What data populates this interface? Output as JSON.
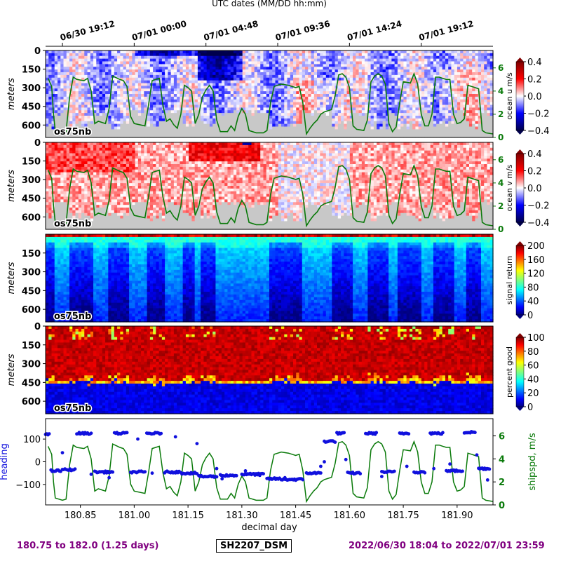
{
  "chart_data": [
    {
      "type": "heatmap",
      "top_axis_label": "UTC dates (MM/DD hh:mm)",
      "top_ticks": [
        {
          "x": 180.8,
          "label": "06/30 19:12"
        },
        {
          "x": 181.0,
          "label": "07/01 00:00"
        },
        {
          "x": 181.2,
          "label": "07/01 04:48"
        },
        {
          "x": 181.4,
          "label": "07/01 09:36"
        },
        {
          "x": 181.6,
          "label": "07/01 14:24"
        },
        {
          "x": 181.8,
          "label": "07/01 19:12"
        }
      ],
      "ylabel": "meters",
      "yticks": [
        0,
        150,
        300,
        450,
        600
      ],
      "ylim": [
        700,
        0
      ],
      "xlim": [
        180.753,
        182.0
      ],
      "instrument": "os75nb",
      "colorbar_label": "ocean u m/s",
      "colorbar_ticks": [
        "0.4",
        "0.2",
        "0.0",
        "−0.2",
        "−0.4"
      ],
      "colorbar_range": [
        -0.4,
        0.4
      ],
      "colormap": "seismic-blue-white-red",
      "right_axis_ticks": [
        "6",
        "4",
        "2",
        "0"
      ],
      "right_axis_range": [
        0,
        7.5
      ],
      "right_axis_color": "#0a7a0a",
      "overlay_series": "shipspd, m/s",
      "bottom_mask_color": "#c8c8c8"
    },
    {
      "type": "heatmap",
      "ylabel": "meters",
      "yticks": [
        0,
        150,
        300,
        450,
        600
      ],
      "ylim": [
        700,
        0
      ],
      "instrument": "os75nb",
      "colorbar_label": "ocean v m/s",
      "colorbar_ticks": [
        "0.4",
        "0.2",
        "0.0",
        "−0.2",
        "−0.4"
      ],
      "colorbar_range": [
        -0.4,
        0.4
      ],
      "colormap": "seismic-blue-white-red",
      "right_axis_ticks": [
        "6",
        "4",
        "2",
        "0"
      ],
      "right_axis_range": [
        0,
        7.5
      ],
      "right_axis_color": "#0a7a0a",
      "bottom_mask_color": "#c8c8c8"
    },
    {
      "type": "heatmap",
      "ylabel": "meters",
      "yticks": [
        150,
        300,
        450,
        600
      ],
      "ylim": [
        700,
        0
      ],
      "instrument": "os75nb",
      "colorbar_label": "signal return",
      "colorbar_ticks": [
        "200",
        "160",
        "120",
        "80",
        "40",
        "0"
      ],
      "colorbar_range": [
        0,
        200
      ],
      "colormap": "jet"
    },
    {
      "type": "heatmap",
      "ylabel": "meters",
      "yticks": [
        0,
        150,
        300,
        450,
        600
      ],
      "ylim": [
        700,
        0
      ],
      "instrument": "os75nb",
      "colorbar_label": "percent good",
      "colorbar_ticks": [
        "100",
        "80",
        "60",
        "40",
        "20",
        "0"
      ],
      "colorbar_range": [
        0,
        100
      ],
      "colormap": "jet"
    },
    {
      "type": "scatter",
      "xlabel": "decimal day",
      "xticks": [
        "180.85",
        "181.00",
        "181.15",
        "181.30",
        "181.45",
        "181.60",
        "181.75",
        "181.90"
      ],
      "xtick_values": [
        180.85,
        181.0,
        181.15,
        181.3,
        181.45,
        181.6,
        181.75,
        181.9
      ],
      "xlim": [
        180.753,
        182.0
      ],
      "ylabel": "heading",
      "ylabel_color": "#1010dd",
      "yticks": [
        "100",
        "0",
        "−100"
      ],
      "ytick_values": [
        100,
        0,
        -100
      ],
      "ylim": [
        -190,
        190
      ],
      "right_ylabel": "shipspd, m/s",
      "right_ylabel_color": "#0a7a0a",
      "right_yticks": [
        "6",
        "4",
        "2",
        "0"
      ],
      "right_ylim": [
        0,
        7.5
      ]
    }
  ],
  "footer": {
    "left": "180.75 to 182.0 (1.25 days)",
    "center": "SH2207_DSM",
    "right": "2022/06/30 18:04 to 2022/07/01 23:59",
    "color": "#800080"
  },
  "shipspd_trace": [
    [
      180.75,
      5.0
    ],
    [
      180.76,
      5.1
    ],
    [
      180.77,
      4.4
    ],
    [
      180.775,
      2.0
    ],
    [
      180.78,
      0.6
    ],
    [
      180.8,
      0.4
    ],
    [
      180.81,
      0.5
    ],
    [
      180.82,
      3.5
    ],
    [
      180.83,
      5.2
    ],
    [
      180.84,
      5.0
    ],
    [
      180.86,
      4.9
    ],
    [
      180.87,
      5.1
    ],
    [
      180.88,
      4.0
    ],
    [
      180.89,
      1.2
    ],
    [
      180.9,
      1.4
    ],
    [
      180.92,
      1.2
    ],
    [
      180.93,
      2.5
    ],
    [
      180.94,
      5.3
    ],
    [
      180.96,
      5.0
    ],
    [
      180.97,
      4.9
    ],
    [
      180.98,
      4.4
    ],
    [
      180.99,
      1.8
    ],
    [
      181.0,
      1.2
    ],
    [
      181.03,
      1.0
    ],
    [
      181.04,
      2.8
    ],
    [
      181.05,
      4.9
    ],
    [
      181.06,
      5.0
    ],
    [
      181.07,
      5.1
    ],
    [
      181.08,
      2.8
    ],
    [
      181.09,
      1.4
    ],
    [
      181.1,
      1.6
    ],
    [
      181.11,
      1.1
    ],
    [
      181.12,
      0.8
    ],
    [
      181.13,
      2.0
    ],
    [
      181.14,
      4.5
    ],
    [
      181.15,
      4.3
    ],
    [
      181.16,
      4.0
    ],
    [
      181.17,
      1.2
    ],
    [
      181.18,
      2.0
    ],
    [
      181.19,
      3.5
    ],
    [
      181.2,
      4.1
    ],
    [
      181.21,
      4.5
    ],
    [
      181.22,
      4.0
    ],
    [
      181.23,
      1.5
    ],
    [
      181.24,
      0.5
    ],
    [
      181.26,
      0.5
    ],
    [
      181.27,
      1.0
    ],
    [
      181.28,
      0.6
    ],
    [
      181.29,
      1.8
    ],
    [
      181.3,
      2.5
    ],
    [
      181.31,
      2.0
    ],
    [
      181.32,
      0.6
    ],
    [
      181.34,
      0.4
    ],
    [
      181.36,
      0.4
    ],
    [
      181.37,
      0.6
    ],
    [
      181.38,
      3.0
    ],
    [
      181.39,
      4.4
    ],
    [
      181.41,
      4.6
    ],
    [
      181.43,
      4.5
    ],
    [
      181.45,
      4.3
    ],
    [
      181.46,
      4.4
    ],
    [
      181.47,
      3.0
    ],
    [
      181.48,
      0.3
    ],
    [
      181.49,
      0.8
    ],
    [
      181.5,
      1.2
    ],
    [
      181.51,
      1.5
    ],
    [
      181.52,
      2.0
    ],
    [
      181.53,
      2.2
    ],
    [
      181.55,
      2.4
    ],
    [
      181.56,
      3.6
    ],
    [
      181.57,
      5.4
    ],
    [
      181.58,
      5.5
    ],
    [
      181.59,
      5.2
    ],
    [
      181.6,
      4.3
    ],
    [
      181.61,
      1.0
    ],
    [
      181.62,
      0.7
    ],
    [
      181.64,
      0.6
    ],
    [
      181.65,
      1.5
    ],
    [
      181.66,
      4.8
    ],
    [
      181.67,
      5.3
    ],
    [
      181.68,
      5.5
    ],
    [
      181.69,
      5.3
    ],
    [
      181.7,
      4.6
    ],
    [
      181.71,
      1.2
    ],
    [
      181.72,
      0.5
    ],
    [
      181.73,
      0.9
    ],
    [
      181.74,
      3.0
    ],
    [
      181.75,
      4.8
    ],
    [
      181.77,
      4.7
    ],
    [
      181.78,
      5.5
    ],
    [
      181.79,
      4.6
    ],
    [
      181.8,
      2.0
    ],
    [
      181.81,
      1.0
    ],
    [
      181.82,
      1.0
    ],
    [
      181.83,
      2.0
    ],
    [
      181.84,
      5.2
    ],
    [
      181.85,
      5.2
    ],
    [
      181.86,
      5.1
    ],
    [
      181.87,
      5.0
    ],
    [
      181.88,
      5.0
    ],
    [
      181.89,
      2.0
    ],
    [
      181.9,
      1.2
    ],
    [
      181.91,
      1.3
    ],
    [
      181.92,
      1.6
    ],
    [
      181.93,
      4.5
    ],
    [
      181.94,
      4.4
    ],
    [
      181.95,
      4.3
    ],
    [
      181.96,
      4.2
    ],
    [
      181.97,
      0.6
    ],
    [
      181.98,
      0.4
    ],
    [
      182.0,
      0.3
    ]
  ],
  "heading_segments": [
    [
      180.753,
      180.763,
      120
    ],
    [
      180.768,
      180.795,
      -40
    ],
    [
      180.8,
      180.835,
      -35
    ],
    [
      180.84,
      180.88,
      125
    ],
    [
      180.89,
      180.94,
      -45
    ],
    [
      180.945,
      180.98,
      125
    ],
    [
      180.99,
      181.03,
      -45
    ],
    [
      181.035,
      181.075,
      125
    ],
    [
      181.085,
      181.125,
      -45
    ],
    [
      181.13,
      181.175,
      -50
    ],
    [
      181.18,
      181.23,
      -65
    ],
    [
      181.24,
      181.285,
      -60
    ],
    [
      181.3,
      181.36,
      -55
    ],
    [
      181.37,
      181.405,
      -75
    ],
    [
      181.41,
      181.47,
      -78
    ],
    [
      181.48,
      181.52,
      -50
    ],
    [
      181.53,
      181.56,
      90
    ],
    [
      181.565,
      181.585,
      125
    ],
    [
      181.595,
      181.63,
      -50
    ],
    [
      181.645,
      181.675,
      125
    ],
    [
      181.69,
      181.725,
      -45
    ],
    [
      181.74,
      181.765,
      125
    ],
    [
      181.78,
      181.81,
      -45
    ],
    [
      181.825,
      181.86,
      125
    ],
    [
      181.87,
      181.915,
      -40
    ],
    [
      181.92,
      181.95,
      130
    ],
    [
      181.96,
      181.99,
      -30
    ]
  ],
  "heading_scatter": [
    [
      180.8,
      40
    ],
    [
      180.88,
      -55
    ],
    [
      180.93,
      -70
    ],
    [
      181.01,
      100
    ],
    [
      181.05,
      -50
    ],
    [
      181.115,
      110
    ],
    [
      181.175,
      80
    ],
    [
      181.23,
      -30
    ],
    [
      181.245,
      -75
    ],
    [
      181.31,
      -40
    ],
    [
      181.35,
      -60
    ],
    [
      181.42,
      -70
    ],
    [
      181.52,
      -20
    ],
    [
      181.53,
      0
    ],
    [
      181.59,
      10
    ],
    [
      181.69,
      -65
    ],
    [
      181.76,
      -20
    ],
    [
      181.835,
      -30
    ],
    [
      181.88,
      -10
    ],
    [
      181.955,
      30
    ],
    [
      181.985,
      -80
    ]
  ]
}
